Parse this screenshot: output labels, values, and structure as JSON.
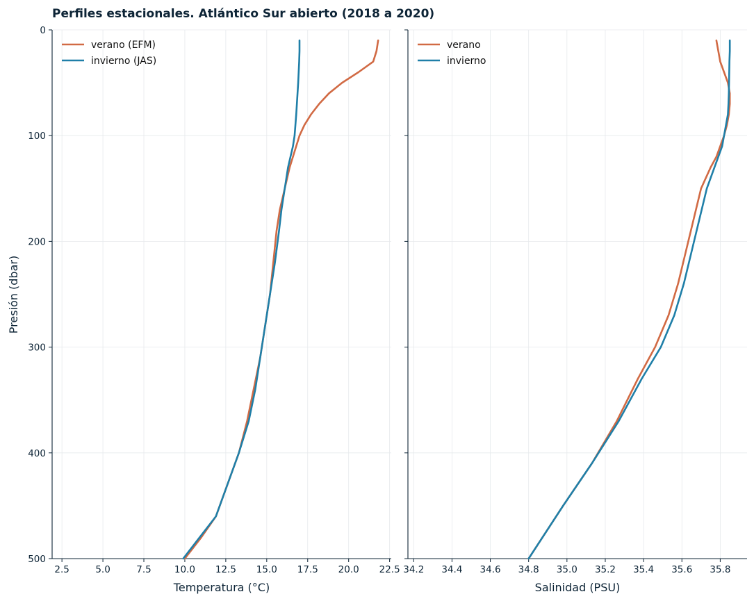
{
  "chart_data": {
    "title": "Perfiles estacionales. Atlántico Sur abierto (2018 a 2020)",
    "type": "line",
    "shared_y": {
      "label": "Presión (dbar)",
      "lim": [
        500,
        0
      ],
      "ticks": [
        0,
        100,
        200,
        300,
        400,
        500
      ],
      "inverted": true
    },
    "panels": [
      {
        "xlabel": "Temperatura (°C)",
        "xlim": [
          1.9,
          22.6
        ],
        "xticks": [
          2.5,
          5.0,
          7.5,
          10.0,
          12.5,
          15.0,
          17.5,
          20.0,
          22.5
        ],
        "xtick_labels": [
          "2.5",
          "5.0",
          "7.5",
          "10.0",
          "12.5",
          "15.0",
          "17.5",
          "20.0",
          "22.5"
        ],
        "legend_position": "upper left",
        "series": [
          {
            "name": "verano (EFM)",
            "color": "#d16a44",
            "x": [
              21.8,
              21.7,
              21.5,
              20.6,
              19.6,
              18.8,
              18.2,
              17.7,
              17.3,
              17.0,
              16.8,
              16.6,
              16.4,
              16.1,
              15.8,
              15.6,
              15.4,
              15.2,
              14.9,
              14.6,
              14.2,
              13.8,
              13.3,
              12.6,
              11.9,
              11.0,
              10.0
            ],
            "y": [
              10,
              20,
              30,
              40,
              50,
              60,
              70,
              80,
              90,
              100,
              110,
              120,
              130,
              150,
              170,
              190,
              220,
              250,
              280,
              310,
              340,
              370,
              400,
              430,
              460,
              480,
              500
            ]
          },
          {
            "name": "invierno (JAS)",
            "color": "#1f7fa8",
            "x": [
              17.0,
              17.0,
              16.98,
              16.95,
              16.92,
              16.88,
              16.84,
              16.8,
              16.75,
              16.7,
              16.6,
              16.45,
              16.3,
              16.1,
              15.9,
              15.75,
              15.5,
              15.2,
              14.9,
              14.6,
              14.3,
              13.9,
              13.3,
              12.6,
              11.9,
              10.9,
              9.9
            ],
            "y": [
              10,
              20,
              30,
              40,
              50,
              60,
              70,
              80,
              90,
              100,
              110,
              120,
              130,
              150,
              170,
              190,
              220,
              250,
              280,
              310,
              340,
              370,
              400,
              430,
              460,
              480,
              500
            ]
          }
        ]
      },
      {
        "xlabel": "Salinidad (PSU)",
        "xlim": [
          34.17,
          35.94
        ],
        "xticks": [
          34.2,
          34.4,
          34.6,
          34.8,
          35.0,
          35.2,
          35.4,
          35.6,
          35.8
        ],
        "xtick_labels": [
          "34.2",
          "34.4",
          "34.6",
          "34.8",
          "35.0",
          "35.2",
          "35.4",
          "35.6",
          "35.8"
        ],
        "legend_position": "upper left",
        "series": [
          {
            "name": "verano",
            "color": "#d16a44",
            "x": [
              35.78,
              35.79,
              35.8,
              35.82,
              35.84,
              35.85,
              35.85,
              35.845,
              35.835,
              35.82,
              35.8,
              35.78,
              35.75,
              35.7,
              35.66,
              35.62,
              35.58,
              35.53,
              35.46,
              35.37,
              35.26,
              35.13,
              34.98,
              34.8
            ],
            "y": [
              10,
              20,
              30,
              40,
              50,
              60,
              70,
              80,
              90,
              100,
              110,
              120,
              130,
              150,
              180,
              210,
              240,
              270,
              300,
              330,
              370,
              410,
              450,
              500
            ]
          },
          {
            "name": "invierno",
            "color": "#1f7fa8",
            "x": [
              35.85,
              35.85,
              35.848,
              35.847,
              35.846,
              35.845,
              35.843,
              35.84,
              35.83,
              35.82,
              35.81,
              35.79,
              35.77,
              35.73,
              35.69,
              35.65,
              35.61,
              35.56,
              35.49,
              35.39,
              35.27,
              35.13,
              34.98,
              34.8
            ],
            "y": [
              10,
              20,
              30,
              40,
              50,
              60,
              70,
              80,
              90,
              100,
              110,
              120,
              130,
              150,
              180,
              210,
              240,
              270,
              300,
              330,
              370,
              410,
              450,
              500
            ]
          }
        ]
      }
    ]
  }
}
